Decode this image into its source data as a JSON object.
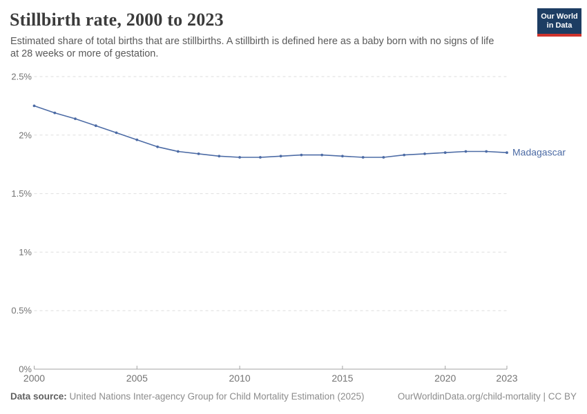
{
  "header": {
    "title": "Stillbirth rate, 2000 to 2023",
    "subtitle_lines": [
      "Estimated share of total births that are stillbirths. A stillbirth is defined here as a baby born with no signs of life",
      "at 28 weeks or more of gestation."
    ],
    "logo": {
      "line1": "Our World",
      "line2": "in Data"
    }
  },
  "chart_data": {
    "type": "line",
    "title": "Stillbirth rate, 2000 to 2023",
    "unit": "%",
    "xlabel": "",
    "ylabel": "",
    "xlim": [
      2000,
      2023
    ],
    "ylim": [
      0,
      2.5
    ],
    "grid": "horizontal-dashed",
    "legend_position": "line-end-label",
    "x_ticks": [
      2000,
      2005,
      2010,
      2015,
      2020,
      2023
    ],
    "y_ticks": [
      {
        "value": 2.5,
        "label": "2.5%"
      },
      {
        "value": 2.0,
        "label": "2%"
      },
      {
        "value": 1.5,
        "label": "1.5%"
      },
      {
        "value": 1.0,
        "label": "1%"
      },
      {
        "value": 0.5,
        "label": "0.5%"
      },
      {
        "value": 0.0,
        "label": "0%"
      }
    ],
    "series": [
      {
        "name": "Madagascar",
        "color": "#4C6BA5",
        "x": [
          2000,
          2001,
          2002,
          2003,
          2004,
          2005,
          2006,
          2007,
          2008,
          2009,
          2010,
          2011,
          2012,
          2013,
          2014,
          2015,
          2016,
          2017,
          2018,
          2019,
          2020,
          2021,
          2022,
          2023
        ],
        "values": [
          2.25,
          2.19,
          2.14,
          2.08,
          2.02,
          1.96,
          1.9,
          1.86,
          1.84,
          1.82,
          1.81,
          1.81,
          1.82,
          1.83,
          1.83,
          1.82,
          1.81,
          1.81,
          1.83,
          1.84,
          1.85,
          1.86,
          1.86,
          1.85
        ]
      }
    ]
  },
  "footer": {
    "datasource_label": "Data source:",
    "datasource_text": " United Nations Inter-agency Group for Child Mortality Estimation (2025)",
    "link_text": "OurWorldinData.org/child-mortality | CC BY"
  },
  "colors": {
    "line": "#4C6BA5",
    "gridline": "#dedede",
    "axis": "#a3a3a3",
    "tick_label": "#737373",
    "logo_background": "#1d3d63",
    "logo_accent": "#cf332c"
  }
}
